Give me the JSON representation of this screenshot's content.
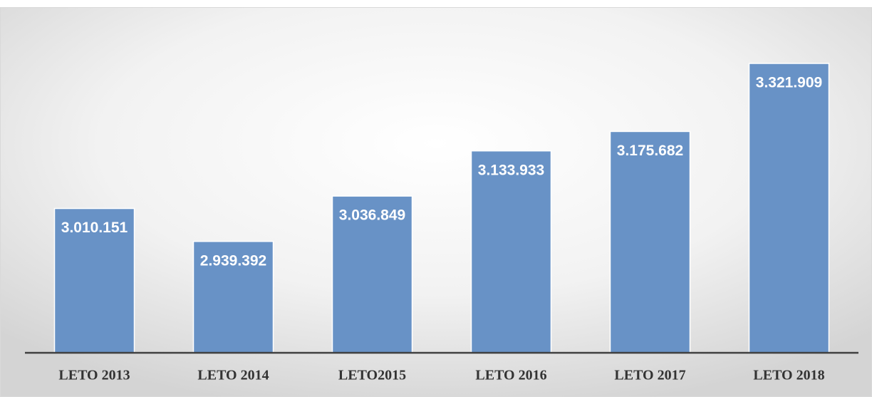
{
  "chart_data": {
    "type": "bar",
    "categories": [
      "LETO 2013",
      "LETO 2014",
      "LETO2015",
      "LETO 2016",
      "LETO 2017",
      "LETO 2018"
    ],
    "values": [
      3010151,
      2939392,
      3036849,
      3133933,
      3175682,
      3321909
    ],
    "value_labels": [
      "3.010.151",
      "2.939.392",
      "3.036.849",
      "3.133.933",
      "3.175.682",
      "3.321.909"
    ],
    "color": "#6892c6",
    "ylim": [
      2700000,
      3400000
    ]
  }
}
